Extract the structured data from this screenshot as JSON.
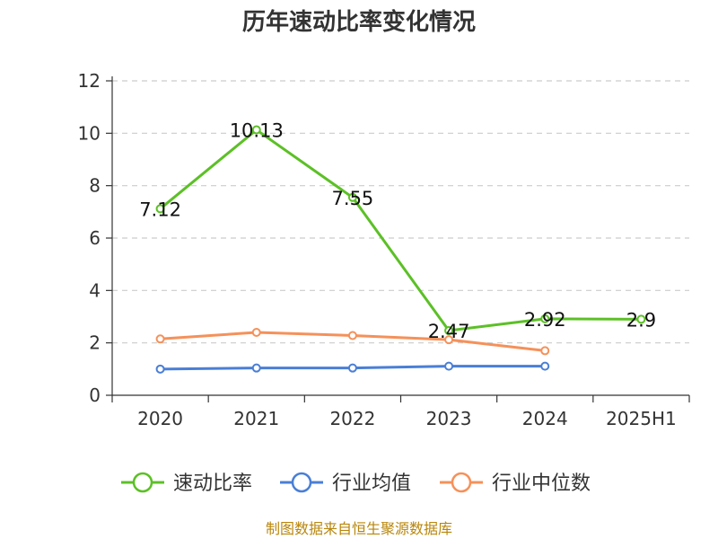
{
  "chart_data": {
    "type": "line",
    "title": "历年速动比率变化情况",
    "xlabel": "",
    "ylabel": "",
    "categories": [
      "2020",
      "2021",
      "2022",
      "2023",
      "2024",
      "2025H1"
    ],
    "ylim": [
      0,
      12
    ],
    "yticks": [
      0,
      2,
      4,
      6,
      8,
      10,
      12
    ],
    "grid": true,
    "legend_position": "bottom",
    "series": [
      {
        "name": "速动比率",
        "color": "#5cc026",
        "values": [
          7.12,
          10.13,
          7.55,
          2.47,
          2.92,
          2.9
        ],
        "labels": [
          "7.12",
          "10.13",
          "7.55",
          "2.47",
          "2.92",
          "2.9"
        ]
      },
      {
        "name": "行业均值",
        "color": "#4a7fd6",
        "values": [
          1.0,
          1.04,
          1.04,
          1.11,
          1.11,
          null
        ]
      },
      {
        "name": "行业中位数",
        "color": "#f5915a",
        "values": [
          2.15,
          2.4,
          2.28,
          2.12,
          1.7,
          null
        ]
      }
    ]
  },
  "source": "制图数据来自恒生聚源数据库"
}
